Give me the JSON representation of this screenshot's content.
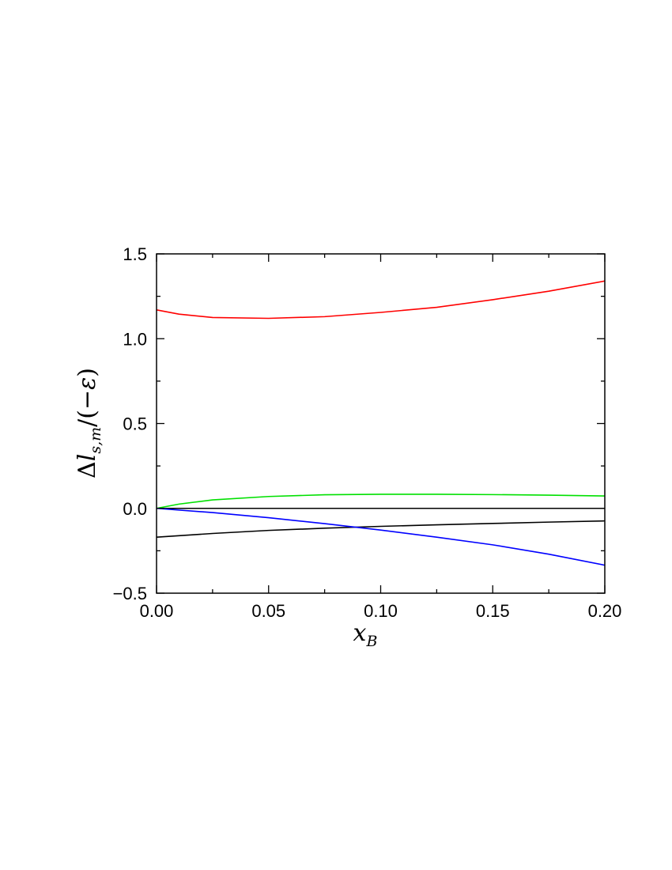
{
  "chart_data": {
    "type": "line",
    "title": "",
    "xlabel": {
      "main": "x",
      "sub": "B"
    },
    "ylabel": {
      "delta": "Δ",
      "main": "l",
      "sub": "s,m",
      "tail": "/(−",
      "eps": "ε",
      "close": ")"
    },
    "xlim": [
      0.0,
      0.2
    ],
    "ylim": [
      -0.5,
      1.5
    ],
    "x_ticks": [
      {
        "value": 0.0,
        "label": "0.00"
      },
      {
        "value": 0.05,
        "label": "0.05"
      },
      {
        "value": 0.1,
        "label": "0.10"
      },
      {
        "value": 0.15,
        "label": "0.15"
      },
      {
        "value": 0.2,
        "label": "0.20"
      }
    ],
    "y_ticks": [
      {
        "value": -0.5,
        "label": "−0.5"
      },
      {
        "value": 0.0,
        "label": "0.0"
      },
      {
        "value": 0.5,
        "label": "0.5"
      },
      {
        "value": 1.0,
        "label": "1.0"
      },
      {
        "value": 1.5,
        "label": "1.5"
      }
    ],
    "x_minor_step": 0.025,
    "y_minor_step": 0.25,
    "grid": false,
    "series": [
      {
        "color": "#ff0000",
        "points": [
          [
            0.0,
            1.17
          ],
          [
            0.01,
            1.145
          ],
          [
            0.025,
            1.125
          ],
          [
            0.05,
            1.12
          ],
          [
            0.075,
            1.13
          ],
          [
            0.1,
            1.155
          ],
          [
            0.125,
            1.185
          ],
          [
            0.15,
            1.23
          ],
          [
            0.175,
            1.28
          ],
          [
            0.2,
            1.34
          ]
        ]
      },
      {
        "color": "#00e000",
        "points": [
          [
            0.0,
            0.0
          ],
          [
            0.01,
            0.025
          ],
          [
            0.025,
            0.05
          ],
          [
            0.05,
            0.07
          ],
          [
            0.075,
            0.08
          ],
          [
            0.1,
            0.083
          ],
          [
            0.125,
            0.083
          ],
          [
            0.15,
            0.081
          ],
          [
            0.175,
            0.078
          ],
          [
            0.2,
            0.073
          ]
        ]
      },
      {
        "color": "#000000",
        "points": [
          [
            0.0,
            0.0
          ],
          [
            0.2,
            0.0
          ]
        ]
      },
      {
        "color": "#000000",
        "points": [
          [
            0.0,
            -0.17
          ],
          [
            0.025,
            -0.148
          ],
          [
            0.05,
            -0.13
          ],
          [
            0.075,
            -0.117
          ],
          [
            0.1,
            -0.106
          ],
          [
            0.125,
            -0.097
          ],
          [
            0.15,
            -0.089
          ],
          [
            0.175,
            -0.081
          ],
          [
            0.2,
            -0.074
          ]
        ]
      },
      {
        "color": "#0000ff",
        "points": [
          [
            0.0,
            0.0
          ],
          [
            0.025,
            -0.025
          ],
          [
            0.05,
            -0.055
          ],
          [
            0.075,
            -0.09
          ],
          [
            0.1,
            -0.128
          ],
          [
            0.125,
            -0.17
          ],
          [
            0.15,
            -0.215
          ],
          [
            0.175,
            -0.27
          ],
          [
            0.2,
            -0.335
          ]
        ]
      }
    ]
  }
}
